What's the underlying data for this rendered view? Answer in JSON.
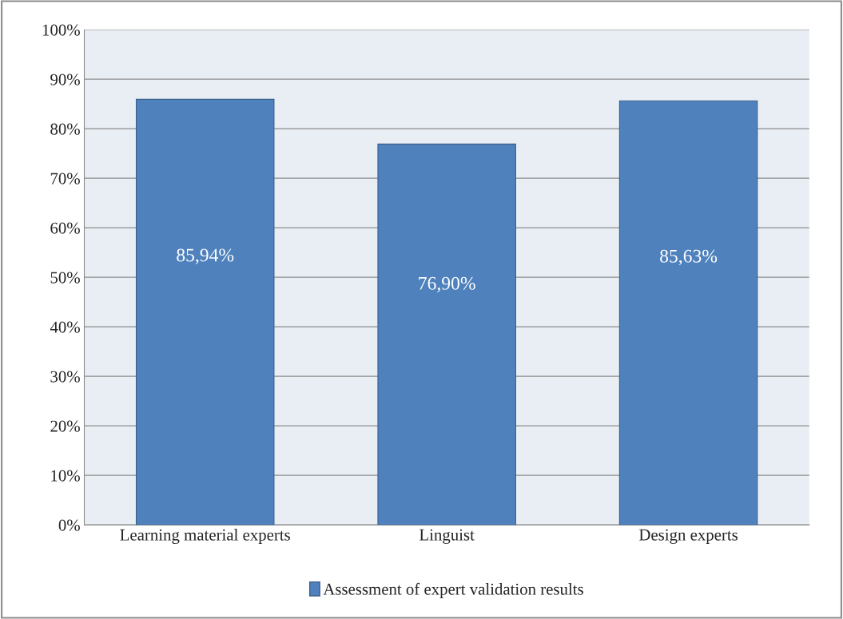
{
  "chart_data": {
    "type": "bar",
    "categories": [
      "Learning material experts",
      "Linguist",
      "Design experts"
    ],
    "series": [
      {
        "name": "Assessment of expert validation results",
        "color": "#4f81bd",
        "values": [
          85.94,
          76.9,
          85.63
        ],
        "value_labels": [
          "85,94%",
          "76,90%",
          "85,63%"
        ]
      }
    ],
    "ylim": [
      0,
      100
    ],
    "yticks": [
      {
        "value": 0,
        "label": "0%"
      },
      {
        "value": 10,
        "label": "10%"
      },
      {
        "value": 20,
        "label": "20%"
      },
      {
        "value": 30,
        "label": "30%"
      },
      {
        "value": 40,
        "label": "40%"
      },
      {
        "value": 50,
        "label": "50%"
      },
      {
        "value": 60,
        "label": "60%"
      },
      {
        "value": 70,
        "label": "70%"
      },
      {
        "value": 80,
        "label": "80%"
      },
      {
        "value": 90,
        "label": "90%"
      },
      {
        "value": 100,
        "label": "100%"
      }
    ],
    "grid": "y",
    "legend": "bottom"
  }
}
